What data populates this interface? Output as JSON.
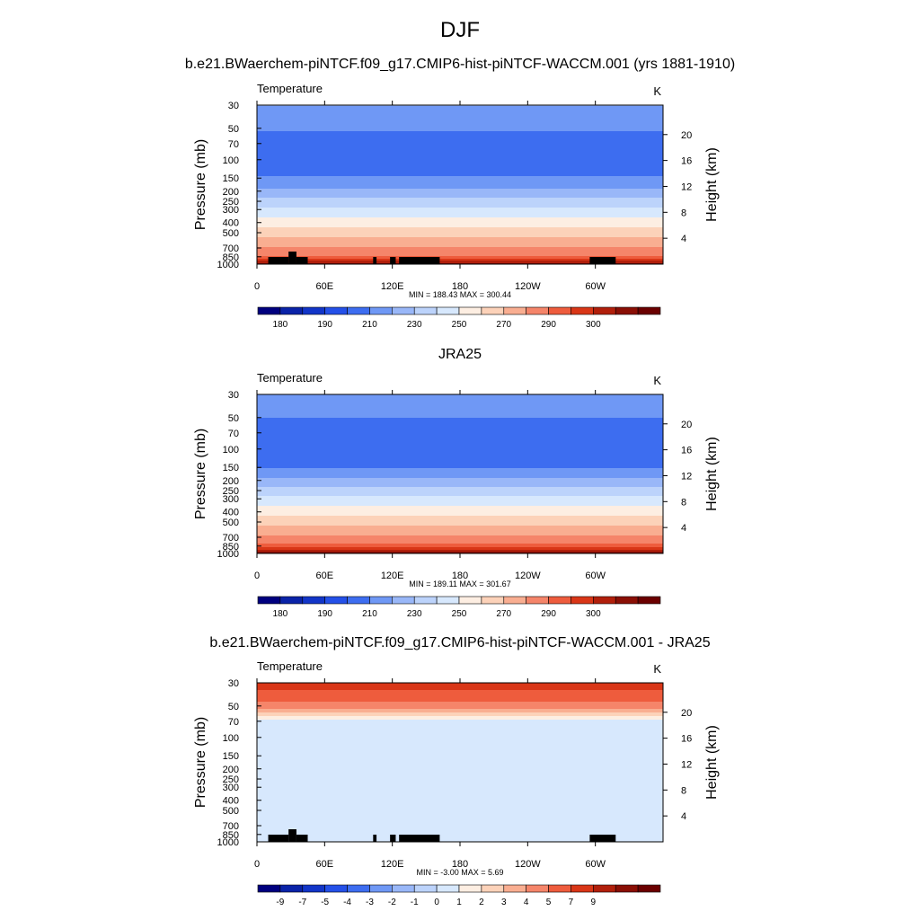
{
  "page_title": "DJF",
  "panel_titles": [
    "b.e21.BWaerchem-piNTCF.f09_g17.CMIP6-hist-piNTCF-WACCM.001 (yrs 1881-1910)",
    "JRA25",
    "b.e21.BWaerchem-piNTCF.f09_g17.CMIP6-hist-piNTCF-WACCM.001 - JRA25"
  ],
  "colors": {
    "temperature": [
      "#00007f",
      "#0a23a8",
      "#1235c8",
      "#2450e8",
      "#3d6df0",
      "#6f98f5",
      "#99b7f8",
      "#bcd3fb",
      "#d7e8fd",
      "#fdeee2",
      "#fcd2b9",
      "#f9ae91",
      "#f5856a",
      "#ee5c3d",
      "#d93617",
      "#b11f0b",
      "#8a0f05",
      "#6b0000"
    ],
    "difference": [
      "#00007f",
      "#0a23a8",
      "#1235c8",
      "#2450e8",
      "#3d6df0",
      "#6f98f5",
      "#99b7f8",
      "#bcd3fb",
      "#d7e8fd",
      "#fdeee2",
      "#fcd2b9",
      "#f9ae91",
      "#f5856a",
      "#ee5c3d",
      "#d93617",
      "#b11f0b",
      "#8a0f05",
      "#6b0000"
    ],
    "topography": "#000000"
  },
  "chart_data": [
    {
      "type": "heatmap",
      "title": "b.e21.BWaerchem-piNTCF.f09_g17.CMIP6-hist-piNTCF-WACCM.001 (yrs 1881-1910)",
      "left_label": "Temperature",
      "units": "K",
      "ylabel": "Pressure (mb)",
      "ylabel_right": "Height (km)",
      "x_ticks": [
        "0",
        "60E",
        "120E",
        "180",
        "120W",
        "60W"
      ],
      "x_values": [
        0,
        60,
        120,
        180,
        240,
        300
      ],
      "xlim": [
        0,
        360
      ],
      "y_ticks": [
        "30",
        "50",
        "70",
        "100",
        "150",
        "200",
        "250",
        "300",
        "400",
        "500",
        "700",
        "850",
        "1000"
      ],
      "y_values": [
        30,
        50,
        70,
        100,
        150,
        200,
        250,
        300,
        400,
        500,
        700,
        850,
        1000
      ],
      "ylim": [
        1000,
        30
      ],
      "right_ticks": [
        "4",
        "8",
        "12",
        "16",
        "20"
      ],
      "right_values": [
        4,
        8,
        12,
        16,
        20
      ],
      "stats": "MIN = 188.43  MAX = 300.44",
      "min": 188.43,
      "max": 300.44,
      "colorbar_labels": [
        "180",
        "190",
        "210",
        "230",
        "250",
        "270",
        "290",
        "300"
      ],
      "colorbar_label_slots": [
        1,
        3,
        5,
        7,
        9,
        11,
        13,
        15
      ],
      "profile_p": [
        30,
        50,
        70,
        100,
        150,
        200,
        250,
        300,
        400,
        500,
        700,
        850,
        1000
      ],
      "profile_v": [
        210,
        201,
        195,
        194,
        201,
        213,
        224,
        233,
        245,
        256,
        271,
        282,
        298
      ],
      "levels": [
        175,
        180,
        185,
        190,
        200,
        210,
        220,
        230,
        240,
        250,
        260,
        270,
        280,
        285,
        290,
        295,
        300
      ],
      "palette": "temperature",
      "topography": true
    },
    {
      "type": "heatmap",
      "title": "JRA25",
      "left_label": "Temperature",
      "units": "K",
      "ylabel": "Pressure (mb)",
      "ylabel_right": "Height (km)",
      "x_ticks": [
        "0",
        "60E",
        "120E",
        "180",
        "120W",
        "60W"
      ],
      "x_values": [
        0,
        60,
        120,
        180,
        240,
        300
      ],
      "xlim": [
        0,
        360
      ],
      "y_ticks": [
        "30",
        "50",
        "70",
        "100",
        "150",
        "200",
        "250",
        "300",
        "400",
        "500",
        "700",
        "850",
        "1000"
      ],
      "y_values": [
        30,
        50,
        70,
        100,
        150,
        200,
        250,
        300,
        400,
        500,
        700,
        850,
        1000
      ],
      "ylim": [
        1000,
        30
      ],
      "right_ticks": [
        "4",
        "8",
        "12",
        "16",
        "20"
      ],
      "right_values": [
        4,
        8,
        12,
        16,
        20
      ],
      "stats": "MIN = 189.11  MAX = 301.67",
      "min": 189.11,
      "max": 301.67,
      "colorbar_labels": [
        "180",
        "190",
        "210",
        "230",
        "250",
        "270",
        "290",
        "300"
      ],
      "colorbar_label_slots": [
        1,
        3,
        5,
        7,
        9,
        11,
        13,
        15
      ],
      "profile_p": [
        30,
        50,
        70,
        100,
        150,
        200,
        250,
        300,
        400,
        500,
        700,
        850,
        1000
      ],
      "profile_v": [
        206,
        200,
        195,
        194,
        200,
        213,
        224,
        234,
        246,
        257,
        272,
        284,
        299
      ],
      "levels": [
        175,
        180,
        185,
        190,
        200,
        210,
        220,
        230,
        240,
        250,
        260,
        270,
        280,
        285,
        290,
        295,
        300
      ],
      "palette": "temperature",
      "topography": false
    },
    {
      "type": "heatmap",
      "title": "b.e21.BWaerchem-piNTCF.f09_g17.CMIP6-hist-piNTCF-WACCM.001 - JRA25",
      "left_label": "Temperature",
      "units": "K",
      "ylabel": "Pressure (mb)",
      "ylabel_right": "Height (km)",
      "x_ticks": [
        "0",
        "60E",
        "120E",
        "180",
        "120W",
        "60W"
      ],
      "x_values": [
        0,
        60,
        120,
        180,
        240,
        300
      ],
      "xlim": [
        0,
        360
      ],
      "y_ticks": [
        "30",
        "50",
        "70",
        "100",
        "150",
        "200",
        "250",
        "300",
        "400",
        "500",
        "700",
        "850",
        "1000"
      ],
      "y_values": [
        30,
        50,
        70,
        100,
        150,
        200,
        250,
        300,
        400,
        500,
        700,
        850,
        1000
      ],
      "ylim": [
        1000,
        30
      ],
      "right_ticks": [
        "4",
        "8",
        "12",
        "16",
        "20"
      ],
      "right_values": [
        4,
        8,
        12,
        16,
        20
      ],
      "stats": "MIN =  -3.00  MAX =   5.69",
      "min": -3.0,
      "max": 5.69,
      "colorbar_labels": [
        "-9",
        "-7",
        "-5",
        "-4",
        "-3",
        "-2",
        "-1",
        "0",
        "1",
        "2",
        "3",
        "4",
        "5",
        "7",
        "9"
      ],
      "colorbar_label_slots": [
        1,
        2,
        3,
        4,
        5,
        6,
        7,
        8,
        9,
        10,
        11,
        12,
        13,
        14,
        15
      ],
      "profile_p": [
        30,
        40,
        50,
        60,
        70,
        85,
        100,
        150,
        200,
        300,
        500,
        700,
        850,
        1000
      ],
      "profile_v": [
        5.5,
        4.5,
        3.5,
        1.5,
        -0.5,
        -0.5,
        -0.5,
        -0.5,
        -0.5,
        -0.5,
        -0.5,
        -0.5,
        -0.5,
        -0.5
      ],
      "levels": [
        -11,
        -9,
        -7,
        -5,
        -4,
        -3,
        -2,
        -1,
        0,
        1,
        2,
        3,
        4,
        5,
        7,
        9,
        11
      ],
      "palette": "difference",
      "topography": true
    }
  ]
}
